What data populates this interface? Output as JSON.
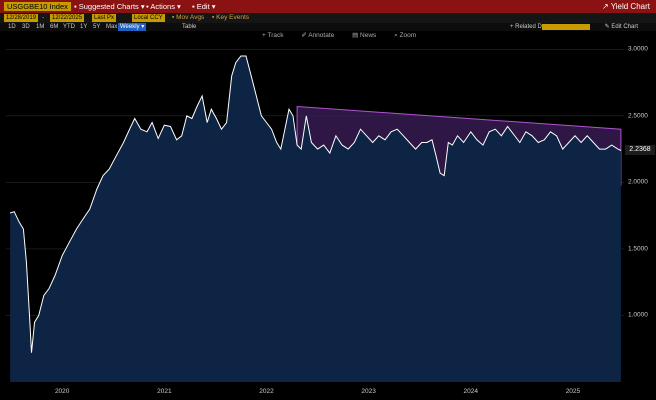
{
  "toolbar": {
    "ticker": "USGGBE10 Index",
    "menus": [
      "Suggested Charts",
      "Actions",
      "Edit"
    ],
    "yield_chart": "Yield Chart"
  },
  "controls": {
    "start_date": "12/28/2019",
    "end_date": "12/22/2025",
    "field": "Last Px",
    "currency": "Local CCY",
    "mov_avgs": "Mov Avgs",
    "key_events": "Key Events",
    "periods": [
      "1D",
      "3D",
      "1M",
      "6M",
      "YTD",
      "1Y",
      "5Y",
      "Max"
    ],
    "frequency": "Weekly",
    "table": "Table",
    "related_dat": "Related Dat",
    "edit_chart": "Edit Chart"
  },
  "annotation_tools": [
    "Track",
    "Annotate",
    "News",
    "Zoom"
  ],
  "chart_data": {
    "type": "area",
    "x_labels": [
      "2020",
      "2021",
      "2022",
      "2023",
      "2024",
      "2025"
    ],
    "y_ticks": [
      "3.0000",
      "2.5000",
      "2.0000",
      "1.5000",
      "1.0000"
    ],
    "ylim": [
      0.5,
      3.07
    ],
    "last_value_label": "2.2368",
    "series": [
      {
        "x": [
          2019.99,
          2020.03,
          2020.08,
          2020.12,
          2020.15,
          2020.18,
          2020.2,
          2020.23,
          2020.27,
          2020.32,
          2020.37,
          2020.43,
          2020.5,
          2020.57,
          2020.64,
          2020.7,
          2020.77,
          2020.84,
          2020.9,
          2020.96,
          2021.03,
          2021.1,
          2021.16,
          2021.21,
          2021.27,
          2021.33,
          2021.38,
          2021.44,
          2021.5,
          2021.56,
          2021.62,
          2021.67,
          2021.72,
          2021.77,
          2021.82,
          2021.87,
          2021.92,
          2021.96,
          2022.01,
          2022.06,
          2022.11,
          2022.16,
          2022.2,
          2022.25,
          2022.3,
          2022.35,
          2022.4,
          2022.45,
          2022.5,
          2022.55,
          2022.6,
          2022.64,
          2022.68,
          2022.72,
          2022.76,
          2022.8,
          2022.84,
          2022.89,
          2022.94,
          2023.0,
          2023.06,
          2023.12,
          2023.18,
          2023.24,
          2023.3,
          2023.36,
          2023.42,
          2023.48,
          2023.54,
          2023.6,
          2023.66,
          2023.72,
          2023.78,
          2023.84,
          2023.9,
          2023.96,
          2024.02,
          2024.07,
          2024.12,
          2024.16,
          2024.2,
          2024.24,
          2024.28,
          2024.32,
          2024.37,
          2024.43,
          2024.5,
          2024.56,
          2024.62,
          2024.68,
          2024.74,
          2024.8,
          2024.86,
          2024.92,
          2024.98,
          2025.04,
          2025.1,
          2025.16,
          2025.22,
          2025.28,
          2025.34,
          2025.4,
          2025.46,
          2025.52,
          2025.58,
          2025.64,
          2025.7,
          2025.76,
          2025.82,
          2025.88,
          2025.94,
          2025.97
        ],
        "values": [
          1.77,
          1.78,
          1.7,
          1.65,
          1.4,
          1.0,
          0.72,
          0.95,
          1.0,
          1.15,
          1.2,
          1.3,
          1.45,
          1.55,
          1.65,
          1.72,
          1.8,
          1.95,
          2.05,
          2.1,
          2.2,
          2.3,
          2.4,
          2.48,
          2.4,
          2.38,
          2.45,
          2.33,
          2.43,
          2.42,
          2.32,
          2.35,
          2.5,
          2.48,
          2.57,
          2.65,
          2.45,
          2.55,
          2.48,
          2.4,
          2.45,
          2.8,
          2.9,
          2.95,
          2.95,
          2.8,
          2.65,
          2.5,
          2.45,
          2.4,
          2.3,
          2.25,
          2.4,
          2.55,
          2.5,
          2.28,
          2.25,
          2.5,
          2.3,
          2.25,
          2.28,
          2.22,
          2.35,
          2.28,
          2.25,
          2.3,
          2.4,
          2.35,
          2.3,
          2.35,
          2.32,
          2.38,
          2.4,
          2.35,
          2.3,
          2.25,
          2.3,
          2.3,
          2.32,
          2.2,
          2.07,
          2.05,
          2.3,
          2.28,
          2.35,
          2.3,
          2.38,
          2.32,
          2.28,
          2.38,
          2.4,
          2.35,
          2.42,
          2.36,
          2.3,
          2.38,
          2.35,
          2.3,
          2.32,
          2.38,
          2.35,
          2.25,
          2.3,
          2.35,
          2.3,
          2.35,
          2.3,
          2.25,
          2.25,
          2.28,
          2.25,
          2.24
        ]
      }
    ],
    "channel": {
      "upper": [
        [
          2022.8,
          2.57
        ],
        [
          2025.97,
          2.4
        ]
      ],
      "lower": [
        [
          2022.8,
          2.12
        ],
        [
          2025.97,
          1.98
        ]
      ]
    }
  },
  "colors": {
    "title_bar": "#8b1212",
    "fill": "#0d2444",
    "line": "#ffffff",
    "channel_fill": "#3e1d5c",
    "channel_edge": "#b055d0",
    "grid": "#333333"
  }
}
